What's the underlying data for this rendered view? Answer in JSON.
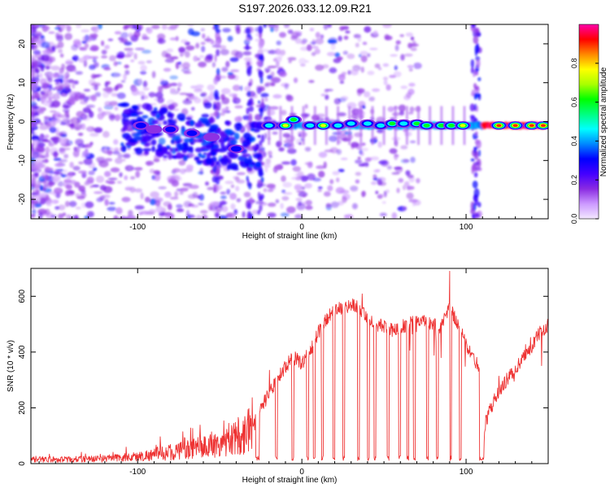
{
  "title": "S197.2026.033.12.09.R21",
  "chart_data": [
    {
      "type": "heatmap",
      "name": "spectrogram",
      "xlabel": "Height of straight line (km)",
      "ylabel": "Frequency (Hz)",
      "xlim": [
        -165,
        150
      ],
      "ylim": [
        -25,
        25
      ],
      "xticks": [
        "-100",
        "0",
        "100"
      ],
      "xtick_values": [
        -100,
        0,
        100
      ],
      "yticks": [
        "-20",
        "-10",
        "0",
        "10",
        "20"
      ],
      "ytick_values": [
        -20,
        -10,
        0,
        10,
        20
      ],
      "colorbar": {
        "label": "Normalized spectral amplitude",
        "range": [
          0,
          1
        ],
        "ticks": [
          "0.0",
          "0.2",
          "0.4",
          "0.6",
          "0.8"
        ],
        "tick_values": [
          0.0,
          0.2,
          0.4,
          0.6,
          0.8
        ],
        "colormap": [
          "#f3e8ff",
          "#cc99ff",
          "#8a2be2",
          "#4400ff",
          "#0000ff",
          "#0088ff",
          "#00ffff",
          "#00ff80",
          "#00ff00",
          "#aaff00",
          "#ffff00",
          "#ff8800",
          "#ff0000",
          "#ff00aa"
        ]
      },
      "blobs": [
        {
          "x": -20,
          "f": -1,
          "a": 0.5
        },
        {
          "x": -10,
          "f": -1,
          "a": 0.75
        },
        {
          "x": -5,
          "f": 0.5,
          "a": 0.6
        },
        {
          "x": 5,
          "f": -1,
          "a": 0.45
        },
        {
          "x": 13,
          "f": -1,
          "a": 0.85
        },
        {
          "x": 22,
          "f": -1,
          "a": 0.5
        },
        {
          "x": 30,
          "f": -0.5,
          "a": 0.55
        },
        {
          "x": 40,
          "f": -0.5,
          "a": 0.5
        },
        {
          "x": 48,
          "f": -1,
          "a": 0.55
        },
        {
          "x": 55,
          "f": -0.5,
          "a": 0.6
        },
        {
          "x": 62,
          "f": -0.5,
          "a": 0.55
        },
        {
          "x": 70,
          "f": -0.5,
          "a": 0.6
        },
        {
          "x": 76,
          "f": -1,
          "a": 0.65
        },
        {
          "x": 85,
          "f": -1,
          "a": 0.6
        },
        {
          "x": 91,
          "f": -1,
          "a": 0.7
        },
        {
          "x": 98,
          "f": -1,
          "a": 0.85
        },
        {
          "x": 120,
          "f": -1,
          "a": 0.95
        },
        {
          "x": 130,
          "f": -1,
          "a": 0.95
        },
        {
          "x": 140,
          "f": -1,
          "a": 0.92
        },
        {
          "x": 147,
          "f": -1,
          "a": 0.9
        },
        {
          "x": -98,
          "f": -1,
          "a": 0.3
        },
        {
          "x": -90,
          "f": -2,
          "a": 0.25
        },
        {
          "x": -80,
          "f": -2,
          "a": 0.3
        },
        {
          "x": -67,
          "f": -3,
          "a": 0.3
        },
        {
          "x": -55,
          "f": -4,
          "a": 0.28
        },
        {
          "x": -40,
          "f": -7,
          "a": 0.3
        }
      ],
      "vertical_stripes_x": [
        -52,
        -32,
        -25,
        105,
        107
      ]
    },
    {
      "type": "line",
      "name": "snr",
      "xlabel": "Height of straight line (km)",
      "ylabel": "SNR (10 * v/v)",
      "xlim": [
        -165,
        150
      ],
      "ylim": [
        0,
        700
      ],
      "xticks": [
        "-100",
        "0",
        "100"
      ],
      "xtick_values": [
        -100,
        0,
        100
      ],
      "yticks": [
        "0",
        "200",
        "400",
        "600"
      ],
      "ytick_values": [
        0,
        200,
        400,
        600
      ],
      "color": "#ee3333",
      "envelope_x": [
        -165,
        -140,
        -120,
        -100,
        -80,
        -60,
        -50,
        -40,
        -35,
        -30,
        -25,
        -20,
        -15,
        -10,
        -5,
        0,
        5,
        10,
        15,
        20,
        25,
        30,
        35,
        40,
        45,
        50,
        55,
        60,
        65,
        70,
        75,
        80,
        85,
        90,
        95,
        100,
        102,
        105,
        108,
        110,
        112,
        115,
        120,
        125,
        130,
        135,
        140,
        145,
        150
      ],
      "envelope_y": [
        15,
        15,
        18,
        25,
        40,
        60,
        70,
        90,
        110,
        150,
        200,
        250,
        300,
        350,
        380,
        360,
        400,
        470,
        520,
        550,
        560,
        570,
        560,
        520,
        500,
        490,
        480,
        490,
        500,
        520,
        510,
        500,
        490,
        560,
        500,
        430,
        400,
        370,
        350,
        25,
        150,
        200,
        260,
        300,
        340,
        380,
        420,
        470,
        500
      ],
      "dropouts": [
        [
          -28,
          -26
        ],
        [
          -16,
          -15
        ],
        [
          -6,
          -5
        ],
        [
          3,
          4
        ],
        [
          7,
          8
        ],
        [
          12,
          13
        ],
        [
          19,
          20
        ],
        [
          25,
          26
        ],
        [
          34,
          35
        ],
        [
          40,
          41
        ],
        [
          44,
          45
        ],
        [
          52,
          53
        ],
        [
          59,
          60
        ],
        [
          64,
          65
        ],
        [
          68,
          69
        ],
        [
          76,
          77
        ],
        [
          82,
          83
        ],
        [
          90,
          91
        ],
        [
          96,
          97
        ]
      ],
      "peak": {
        "x": 90,
        "y": 690
      }
    }
  ]
}
